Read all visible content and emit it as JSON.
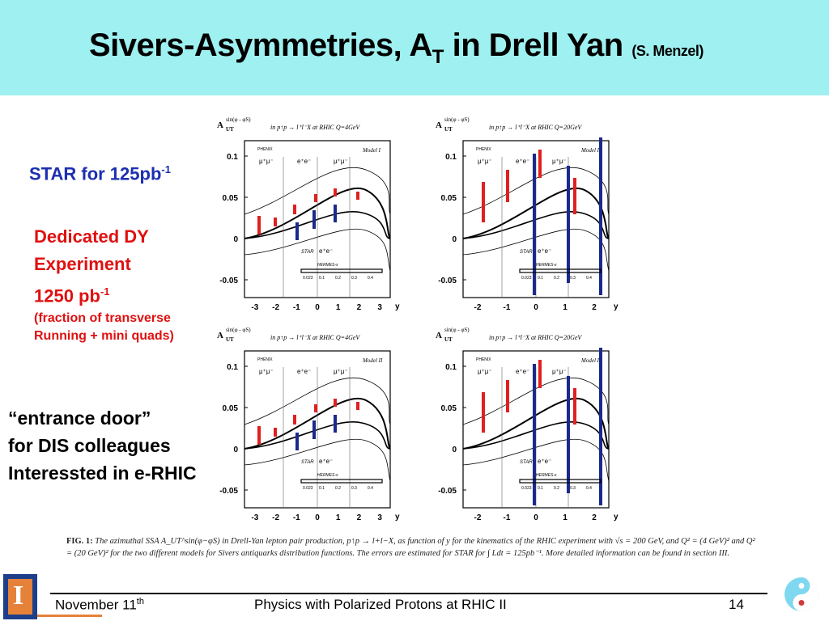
{
  "title": {
    "main": "Sivers-Asymmetries, A",
    "sub": "T",
    "rest": " in Drell Yan ",
    "credit": "(S. Menzel)"
  },
  "side": {
    "star": "STAR for 125pb",
    "star_sup": "-1",
    "dy_line1": "Dedicated DY",
    "dy_line2": "Experiment",
    "dy_line3": "1250 pb",
    "dy_line3_sup": "-1",
    "dy_line4": "(fraction of transverse",
    "dy_line5": "Running + mini quads)",
    "door_line1": "“entrance door”",
    "door_line2": "for DIS colleagues",
    "door_line3": "Interessted in e-RHIC"
  },
  "plots": [
    {
      "id": "p1",
      "ylabel": "A",
      "header": "in p↑p → l⁺l⁻X  at RHIC Q=4GeV",
      "model": "Model I",
      "xticks": [
        "-3",
        "-2",
        "-1",
        "0",
        "1",
        "2",
        "3"
      ]
    },
    {
      "id": "p2",
      "ylabel": "A",
      "header": "in p↑p → l⁺l⁻X  at RHIC Q=20GeV",
      "model": "Model I",
      "xticks": [
        "-2",
        "-1",
        "0",
        "1",
        "2"
      ]
    },
    {
      "id": "p3",
      "ylabel": "A",
      "header": "in p↑p → l⁺l⁻X  at RHIC Q=4GeV",
      "model": "Model II",
      "xticks": [
        "-3",
        "-2",
        "-1",
        "0",
        "1",
        "2",
        "3"
      ]
    },
    {
      "id": "p4",
      "ylabel": "A",
      "header": "in p↑p → l⁺l⁻X  at RHIC Q=20GeV",
      "model": "Model II",
      "xticks": [
        "-2",
        "-1",
        "0",
        "1",
        "2"
      ]
    }
  ],
  "plot_labels": {
    "yticks": [
      "0.1",
      "0.05",
      "0",
      "-0.05"
    ],
    "phenix": "PHENIX",
    "mumu": "μ⁺μ⁻",
    "ee": "e⁺e⁻",
    "star": "STAR",
    "hermes": "HERMES-x",
    "xvals": [
      "0.023",
      "0.1",
      "0.2",
      "0.3",
      "0.4"
    ],
    "xvals_q20": [
      "0.023",
      "0.1",
      "0.2",
      "0.3",
      "0.4"
    ],
    "y": "y",
    "auth": "sin(φ - φS)",
    "ut": "UT"
  },
  "caption": {
    "fig": "FIG. 1:",
    "text": "The azimuthal SSA A_UT^sin(φ−φS) in Drell-Yan lepton pair production, p↑p → l+l−X, as function of y for the kinematics of the RHIC experiment with √s = 200 GeV, and Q² = (4 GeV)² and Q² = (20 GeV)² for the two different models for Sivers antiquarks distribution functions. The errors are estimated for STAR for ∫ Ldt = 125pb⁻¹. More detailed information can be found in section III."
  },
  "footer": {
    "date": "November 11",
    "date_sup": "th",
    "center": "Physics with Polarized Protons at RHIC II",
    "page": "14"
  },
  "colors": {
    "title_bg": "#9ff0f0",
    "star_blue": "#1c2fb0",
    "dy_red": "#e01010",
    "bar_red": "#e02020",
    "bar_blue": "#1a2a8a"
  }
}
